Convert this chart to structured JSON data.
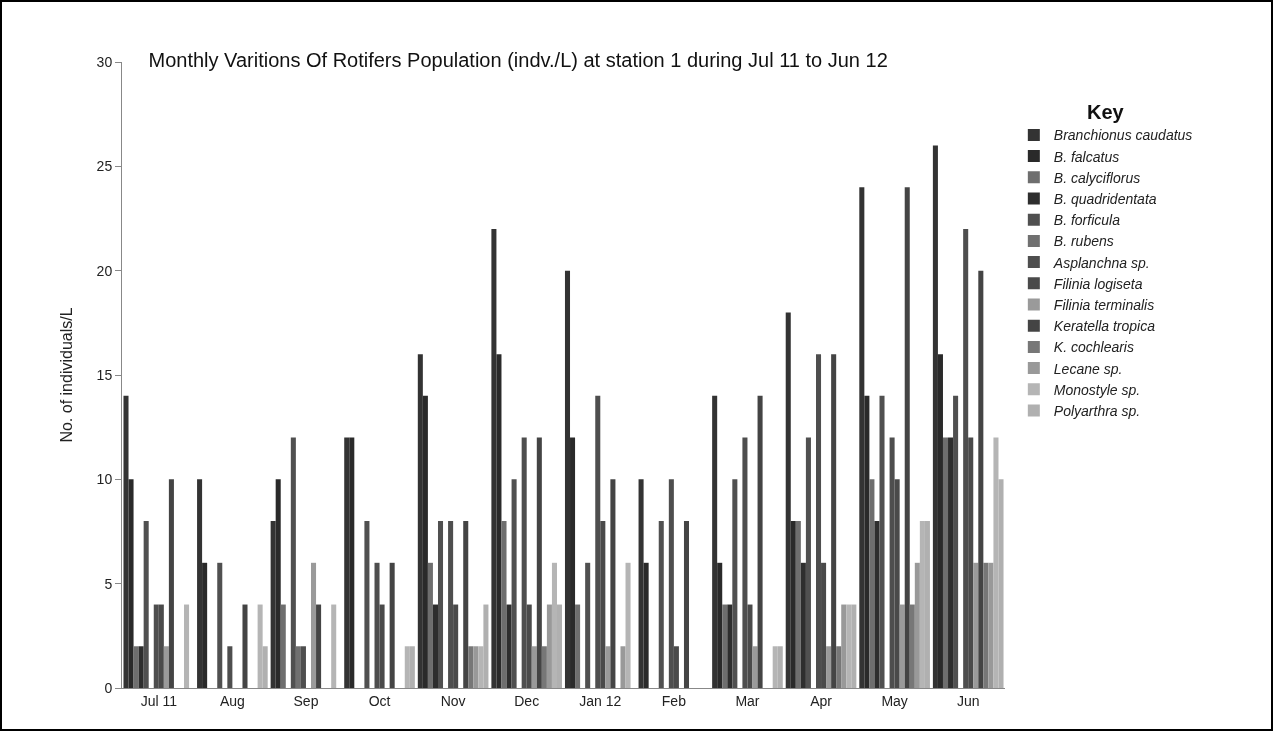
{
  "chart_data": {
    "type": "bar",
    "title": "Monthly Varitions Of Rotifers Population (indv./L) at station 1 during Jul 11 to Jun 12",
    "ylabel": "No. of individuals/L",
    "legend_title": "Key",
    "legend": "right",
    "grid": false,
    "categories": [
      "Jul 11",
      "Aug",
      "Sep",
      "Oct",
      "Nov",
      "Dec",
      "Jan 12",
      "Feb",
      "Mar",
      "Apr",
      "May",
      "Jun"
    ],
    "ylim": [
      0,
      30
    ],
    "yticks": [
      0,
      5,
      10,
      15,
      20,
      25,
      30
    ],
    "series": [
      {
        "name": "Branchionus caudatus",
        "color": "#333333",
        "values": [
          14,
          10,
          8,
          12,
          16,
          22,
          20,
          10,
          14,
          18,
          24,
          26
        ]
      },
      {
        "name": "B. falcatus",
        "color": "#2a2a2a",
        "values": [
          10,
          6,
          10,
          12,
          14,
          16,
          12,
          6,
          6,
          8,
          14,
          16
        ]
      },
      {
        "name": "B. calyciflorus",
        "color": "#6e6e6e",
        "values": [
          2,
          0,
          4,
          0,
          6,
          8,
          4,
          0,
          4,
          8,
          10,
          12
        ]
      },
      {
        "name": "B. quadridentata",
        "color": "#2e2e2e",
        "values": [
          2,
          0,
          0,
          0,
          4,
          4,
          0,
          0,
          4,
          6,
          8,
          12
        ]
      },
      {
        "name": "B. forficula",
        "color": "#505050",
        "values": [
          8,
          6,
          12,
          8,
          8,
          10,
          6,
          8,
          10,
          12,
          14,
          14
        ]
      },
      {
        "name": "B. rubens",
        "color": "#707070",
        "values": [
          0,
          0,
          2,
          0,
          0,
          0,
          0,
          0,
          0,
          0,
          0,
          0
        ]
      },
      {
        "name": "Asplanchna sp.",
        "color": "#4e4e4e",
        "values": [
          4,
          2,
          2,
          6,
          8,
          12,
          14,
          10,
          12,
          16,
          12,
          22
        ]
      },
      {
        "name": "Filinia logiseta",
        "color": "#4a4a4a",
        "values": [
          4,
          0,
          0,
          4,
          4,
          4,
          8,
          2,
          4,
          6,
          10,
          12
        ]
      },
      {
        "name": "Filinia terminalis",
        "color": "#9a9a9a",
        "values": [
          2,
          0,
          6,
          0,
          0,
          2,
          2,
          0,
          2,
          2,
          4,
          6
        ]
      },
      {
        "name": "Keratella tropica",
        "color": "#444444",
        "values": [
          10,
          4,
          4,
          6,
          8,
          12,
          10,
          8,
          14,
          16,
          24,
          20
        ]
      },
      {
        "name": "K. cochlearis",
        "color": "#777777",
        "values": [
          0,
          0,
          0,
          0,
          2,
          2,
          0,
          0,
          0,
          2,
          4,
          6
        ]
      },
      {
        "name": "Lecane sp.",
        "color": "#999999",
        "values": [
          0,
          0,
          0,
          0,
          2,
          4,
          2,
          0,
          0,
          4,
          6,
          6
        ]
      },
      {
        "name": "Monostyle sp.",
        "color": "#b5b5b5",
        "values": [
          4,
          4,
          4,
          2,
          2,
          6,
          6,
          0,
          2,
          4,
          8,
          12
        ]
      },
      {
        "name": "Polyarthra sp.",
        "color": "#b0b0b0",
        "values": [
          0,
          2,
          0,
          2,
          4,
          4,
          0,
          0,
          2,
          4,
          8,
          10
        ]
      }
    ]
  }
}
